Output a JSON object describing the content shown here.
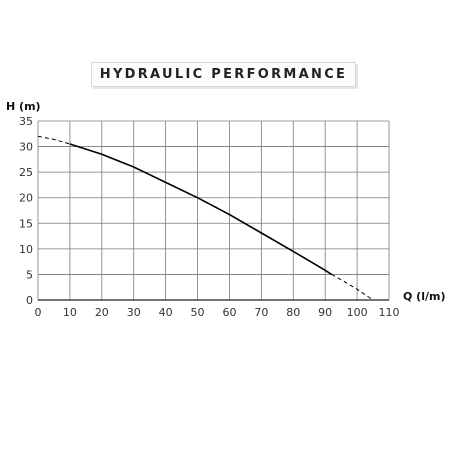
{
  "title": "HYDRAULIC PERFORMANCE",
  "chart_data": {
    "type": "line",
    "title": "HYDRAULIC PERFORMANCE",
    "xlabel": "Q (l/m)",
    "ylabel": "H (m)",
    "xlim": [
      0,
      110
    ],
    "ylim": [
      0,
      35
    ],
    "xticks": [
      0,
      10,
      20,
      30,
      40,
      50,
      60,
      70,
      80,
      90,
      100,
      110
    ],
    "yticks": [
      0,
      5,
      10,
      15,
      20,
      25,
      30,
      35
    ],
    "grid": true,
    "series": [
      {
        "style": "solid",
        "color": "#000000",
        "x": [
          10,
          20,
          30,
          35,
          40,
          50,
          60,
          70,
          80,
          90,
          92
        ],
        "y": [
          30.5,
          28.5,
          26,
          24.5,
          23,
          20,
          16.7,
          13.1,
          9.5,
          5.8,
          5
        ]
      },
      {
        "style": "dashed",
        "color": "#000000",
        "x": [
          0,
          5,
          10
        ],
        "y": [
          32,
          31.4,
          30.5
        ]
      },
      {
        "style": "dashed",
        "color": "#000000",
        "x": [
          92,
          96,
          100,
          105
        ],
        "y": [
          5,
          3.6,
          2.1,
          0
        ]
      }
    ]
  }
}
